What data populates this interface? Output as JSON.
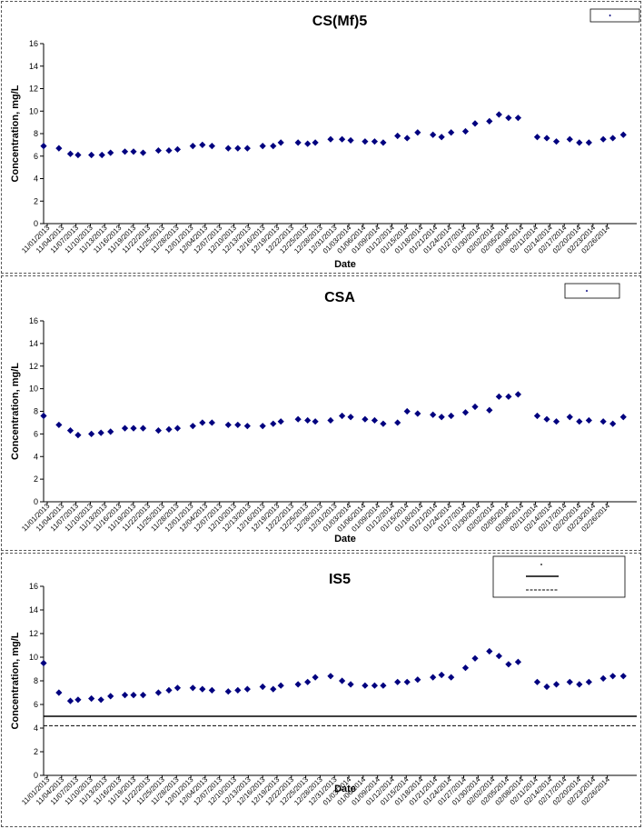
{
  "chart_data": [
    {
      "type": "scatter",
      "title": "CS(Mf)5",
      "xlabel": "Date",
      "ylabel": "Concentration, mg/L",
      "ylim": [
        0,
        16
      ],
      "yticks": [
        "0",
        "2",
        "4",
        "6",
        "8",
        "10",
        "12",
        "14",
        "16"
      ],
      "xticks": [
        "11/01/2013",
        "11/04/2013",
        "11/07/2013",
        "11/10/2013",
        "11/13/2013",
        "11/16/2013",
        "11/19/2013",
        "11/22/2013",
        "11/25/2013",
        "11/28/2013",
        "12/01/2013",
        "12/04/2013",
        "12/07/2013",
        "12/10/2013",
        "12/13/2013",
        "12/16/2013",
        "12/19/2013",
        "12/22/2013",
        "12/25/2013",
        "12/28/2013",
        "12/31/2013",
        "01/03/2014",
        "01/06/2014",
        "01/09/2014",
        "01/12/2014",
        "01/15/2014",
        "01/18/2014",
        "01/21/2014",
        "01/24/2014",
        "01/27/2014",
        "01/30/2014",
        "02/02/2014",
        "02/05/2014",
        "02/08/2014",
        "02/11/2014",
        "02/14/2014",
        "02/17/2014",
        "02/20/2014",
        "02/23/2014",
        "02/26/2014"
      ],
      "legend": {
        "position": "top-right",
        "items": [
          ""
        ]
      },
      "points": [
        [
          0,
          6.9
        ],
        [
          1.6,
          6.7
        ],
        [
          2.8,
          6.2
        ],
        [
          3.6,
          6.1
        ],
        [
          5,
          6.1
        ],
        [
          6.1,
          6.1
        ],
        [
          7,
          6.3
        ],
        [
          8.5,
          6.4
        ],
        [
          9.4,
          6.4
        ],
        [
          10.4,
          6.3
        ],
        [
          12,
          6.5
        ],
        [
          13.1,
          6.5
        ],
        [
          14,
          6.6
        ],
        [
          15.6,
          6.9
        ],
        [
          16.6,
          7
        ],
        [
          17.6,
          6.9
        ],
        [
          19.3,
          6.7
        ],
        [
          20.3,
          6.7
        ],
        [
          21.3,
          6.7
        ],
        [
          22.9,
          6.9
        ],
        [
          24,
          6.9
        ],
        [
          24.8,
          7.2
        ],
        [
          26.6,
          7.2
        ],
        [
          27.6,
          7.1
        ],
        [
          28.4,
          7.2
        ],
        [
          30,
          7.5
        ],
        [
          31.2,
          7.5
        ],
        [
          32.1,
          7.4
        ],
        [
          33.6,
          7.3
        ],
        [
          34.6,
          7.3
        ],
        [
          35.5,
          7.2
        ],
        [
          37,
          7.8
        ],
        [
          38,
          7.6
        ],
        [
          39.1,
          8.1
        ],
        [
          40.7,
          7.9
        ],
        [
          41.6,
          7.7
        ],
        [
          42.6,
          8.1
        ],
        [
          44.1,
          8.2
        ],
        [
          45.1,
          8.9
        ],
        [
          46.6,
          9.1
        ],
        [
          47.6,
          9.7
        ],
        [
          48.6,
          9.4
        ],
        [
          49.6,
          9.4
        ],
        [
          51.6,
          7.7
        ],
        [
          52.6,
          7.6
        ],
        [
          53.6,
          7.3
        ],
        [
          55,
          7.5
        ],
        [
          56,
          7.2
        ],
        [
          57,
          7.2
        ],
        [
          58.5,
          7.5
        ],
        [
          59.5,
          7.6
        ],
        [
          60.6,
          7.9
        ]
      ]
    },
    {
      "type": "scatter",
      "title": "CSA",
      "xlabel": "Date",
      "ylabel": "Concentration, mg/L",
      "ylim": [
        0,
        16
      ],
      "yticks": [
        "0",
        "2",
        "4",
        "6",
        "8",
        "10",
        "12",
        "14",
        "16"
      ],
      "xticks": [
        "11/01/2013",
        "11/04/2013",
        "11/07/2013",
        "11/10/2013",
        "11/13/2013",
        "11/16/2013",
        "11/19/2013",
        "11/22/2013",
        "11/25/2013",
        "11/28/2013",
        "12/01/2013",
        "12/04/2013",
        "12/07/2013",
        "12/10/2013",
        "12/13/2013",
        "12/16/2013",
        "12/19/2013",
        "12/22/2013",
        "12/25/2013",
        "12/28/2013",
        "12/31/2013",
        "01/03/2014",
        "01/06/2014",
        "01/09/2014",
        "01/12/2014",
        "01/15/2014",
        "01/18/2014",
        "01/21/2014",
        "01/24/2014",
        "01/27/2014",
        "01/30/2014",
        "02/02/2014",
        "02/05/2014",
        "02/08/2014",
        "02/11/2014",
        "02/14/2014",
        "02/17/2014",
        "02/20/2014",
        "02/23/2014",
        "02/26/2014"
      ],
      "legend": {
        "position": "top-right",
        "items": [
          ""
        ]
      },
      "points": [
        [
          0,
          7.6
        ],
        [
          1.6,
          6.8
        ],
        [
          2.8,
          6.3
        ],
        [
          3.6,
          5.9
        ],
        [
          5,
          6
        ],
        [
          6,
          6.1
        ],
        [
          7,
          6.2
        ],
        [
          8.5,
          6.5
        ],
        [
          9.4,
          6.5
        ],
        [
          10.4,
          6.5
        ],
        [
          12,
          6.3
        ],
        [
          13.1,
          6.4
        ],
        [
          14,
          6.5
        ],
        [
          15.6,
          6.7
        ],
        [
          16.6,
          7
        ],
        [
          17.6,
          7
        ],
        [
          19.3,
          6.8
        ],
        [
          20.3,
          6.8
        ],
        [
          21.3,
          6.7
        ],
        [
          22.9,
          6.7
        ],
        [
          24,
          6.9
        ],
        [
          24.8,
          7.1
        ],
        [
          26.6,
          7.3
        ],
        [
          27.6,
          7.2
        ],
        [
          28.4,
          7.1
        ],
        [
          30,
          7.2
        ],
        [
          31.2,
          7.6
        ],
        [
          32.1,
          7.5
        ],
        [
          33.6,
          7.3
        ],
        [
          34.6,
          7.2
        ],
        [
          35.5,
          6.9
        ],
        [
          37,
          7
        ],
        [
          38,
          8
        ],
        [
          39.1,
          7.8
        ],
        [
          40.7,
          7.7
        ],
        [
          41.6,
          7.5
        ],
        [
          42.6,
          7.6
        ],
        [
          44.1,
          7.9
        ],
        [
          45.1,
          8.4
        ],
        [
          46.6,
          8.1
        ],
        [
          47.6,
          9.3
        ],
        [
          48.6,
          9.3
        ],
        [
          49.6,
          9.5
        ],
        [
          51.6,
          7.6
        ],
        [
          52.6,
          7.3
        ],
        [
          53.6,
          7.1
        ],
        [
          55,
          7.5
        ],
        [
          56,
          7.1
        ],
        [
          57,
          7.2
        ],
        [
          58.5,
          7.1
        ],
        [
          59.5,
          6.9
        ],
        [
          60.6,
          7.5
        ]
      ]
    },
    {
      "type": "scatter",
      "title": "IS5",
      "xlabel": "Date",
      "ylabel": "Concentration, mg/L",
      "ylim": [
        0,
        16
      ],
      "yticks": [
        "0",
        "2",
        "4",
        "6",
        "8",
        "10",
        "12",
        "14",
        "16"
      ],
      "xticks": [
        "11/01/2013",
        "11/04/2013",
        "11/07/2013",
        "11/10/2013",
        "11/13/2013",
        "11/16/2013",
        "11/19/2013",
        "11/22/2013",
        "11/25/2013",
        "11/28/2013",
        "12/01/2013",
        "12/04/2013",
        "12/07/2013",
        "12/10/2013",
        "12/13/2013",
        "12/16/2013",
        "12/19/2013",
        "12/22/2013",
        "12/25/2013",
        "12/28/2013",
        "12/31/2013",
        "01/03/2014",
        "01/06/2014",
        "01/09/2014",
        "01/12/2014",
        "01/15/2014",
        "01/18/2014",
        "01/21/2014",
        "01/24/2014",
        "01/27/2014",
        "01/30/2014",
        "02/02/2014",
        "02/05/2014",
        "02/08/2014",
        "02/11/2014",
        "02/14/2014",
        "02/17/2014",
        "02/20/2014",
        "02/23/2014",
        "02/26/2014"
      ],
      "legend": {
        "position": "top-right",
        "items": [
          "",
          "",
          ""
        ]
      },
      "ref_lines": [
        {
          "value": 5.0,
          "style": "solid"
        },
        {
          "value": 4.2,
          "style": "dashed"
        }
      ],
      "points": [
        [
          0,
          9.5
        ],
        [
          1.6,
          7
        ],
        [
          2.8,
          6.3
        ],
        [
          3.6,
          6.4
        ],
        [
          5,
          6.5
        ],
        [
          6,
          6.4
        ],
        [
          7,
          6.7
        ],
        [
          8.5,
          6.8
        ],
        [
          9.4,
          6.8
        ],
        [
          10.4,
          6.8
        ],
        [
          12,
          7
        ],
        [
          13.1,
          7.2
        ],
        [
          14,
          7.4
        ],
        [
          15.6,
          7.4
        ],
        [
          16.6,
          7.3
        ],
        [
          17.6,
          7.2
        ],
        [
          19.3,
          7.1
        ],
        [
          20.3,
          7.2
        ],
        [
          21.3,
          7.3
        ],
        [
          22.9,
          7.5
        ],
        [
          24,
          7.3
        ],
        [
          24.8,
          7.6
        ],
        [
          26.6,
          7.7
        ],
        [
          27.6,
          7.9
        ],
        [
          28.4,
          8.3
        ],
        [
          30,
          8.4
        ],
        [
          31.2,
          8
        ],
        [
          32.1,
          7.7
        ],
        [
          33.6,
          7.6
        ],
        [
          34.6,
          7.6
        ],
        [
          35.5,
          7.6
        ],
        [
          37,
          7.9
        ],
        [
          38,
          7.9
        ],
        [
          39.1,
          8.1
        ],
        [
          40.7,
          8.3
        ],
        [
          41.6,
          8.5
        ],
        [
          42.6,
          8.3
        ],
        [
          44.1,
          9.1
        ],
        [
          45.1,
          9.9
        ],
        [
          46.6,
          10.5
        ],
        [
          47.6,
          10.1
        ],
        [
          48.6,
          9.4
        ],
        [
          49.6,
          9.6
        ],
        [
          51.6,
          7.9
        ],
        [
          52.6,
          7.5
        ],
        [
          53.6,
          7.7
        ],
        [
          55,
          7.9
        ],
        [
          56,
          7.7
        ],
        [
          57,
          7.9
        ],
        [
          58.5,
          8.2
        ],
        [
          59.5,
          8.4
        ],
        [
          60.6,
          8.4
        ]
      ]
    }
  ],
  "colors": {
    "marker": "#00007f",
    "axis": "#000000",
    "reference_line": "#000000"
  }
}
